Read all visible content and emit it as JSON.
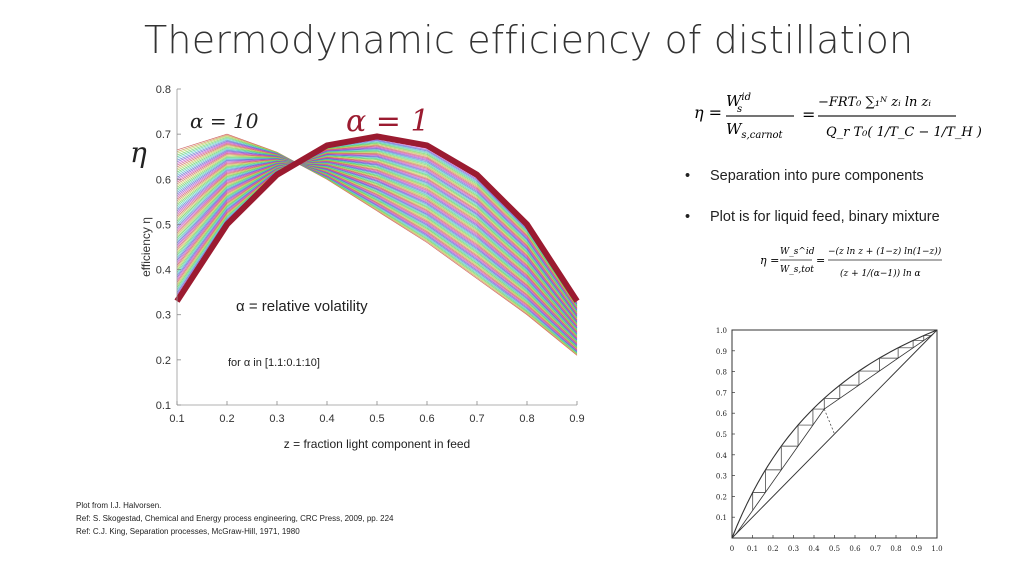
{
  "slide": {
    "title": "Thermodynamic efficiency of distillation",
    "eta_symbol": "η",
    "alpha10_label": "α = 10",
    "alpha1_label": "α = 1",
    "relvol_note": "α = relative volatility",
    "range_note": "for α in [1.1:0.1:10]",
    "bullets": [
      "Separation into pure components",
      "Plot is for liquid feed, binary mixture"
    ],
    "refs": [
      "Plot from I.J. Halvorsen.",
      "Ref: S. Skogestad, Chemical and Energy process engineering, CRC Press, 2009, pp. 224",
      "Ref: C.J. King, Separation processes, McGraw-Hill, 1971, 1980"
    ],
    "colors": {
      "accent": "#9b1b30",
      "axis": "#333333"
    }
  },
  "formula1": {
    "lhs": "η =",
    "num1": "W",
    "num1_sup": "id",
    "num1_sub": "s",
    "den1": "W",
    "den1_sub": "s,carnot",
    "eq": "=",
    "num2": "−FRT₀ ∑₁ᴺ zᵢ ln zᵢ",
    "den2": "Q_r T₀( 1/T_C − 1/T_H )"
  },
  "formula2": {
    "lhs": "η =",
    "num1": "W_s^id",
    "den1": "W_s,tot",
    "num2": "−(z ln z + (1−z) ln(1−z))",
    "den2": "(z + 1/(α−1)) ln α"
  },
  "chart_data": [
    {
      "type": "line",
      "title": "",
      "xlabel": "z = fraction light component in feed",
      "ylabel": "efficiency η",
      "xlim": [
        0.1,
        0.9
      ],
      "ylim": [
        0.1,
        0.8
      ],
      "xticks": [
        "0.1",
        "0.2",
        "0.3",
        "0.4",
        "0.5",
        "0.6",
        "0.7",
        "0.8",
        "0.9"
      ],
      "yticks": [
        "0.1",
        "0.2",
        "0.3",
        "0.4",
        "0.5",
        "0.6",
        "0.7",
        "0.8"
      ],
      "x": [
        0.1,
        0.2,
        0.3,
        0.4,
        0.5,
        0.6,
        0.7,
        0.8,
        0.9
      ],
      "alpha_range": [
        1.1,
        0.1,
        10
      ],
      "series": [
        {
          "name": "α = 1",
          "values": [
            0.33,
            0.5,
            0.61,
            0.675,
            0.695,
            0.675,
            0.61,
            0.5,
            0.33
          ]
        },
        {
          "name": "α = 10",
          "values": [
            0.665,
            0.7,
            0.66,
            0.6,
            0.53,
            0.46,
            0.38,
            0.3,
            0.21
          ]
        }
      ]
    },
    {
      "type": "line",
      "title": "",
      "xlim": [
        0,
        1.0
      ],
      "ylim": [
        0,
        1.0
      ],
      "xticks": [
        "0",
        "0.1",
        "0.2",
        "0.3",
        "0.4",
        "0.5",
        "0.6",
        "0.7",
        "0.8",
        "0.9",
        "1.0"
      ],
      "yticks": [
        "0.1",
        "0.2",
        "0.3",
        "0.4",
        "0.5",
        "0.6",
        "0.7",
        "0.8",
        "0.9",
        "1.0"
      ],
      "series": [
        {
          "values": [
            0,
            0.2,
            0.4,
            0.6,
            0.8,
            1.0
          ]
        }
      ]
    }
  ]
}
